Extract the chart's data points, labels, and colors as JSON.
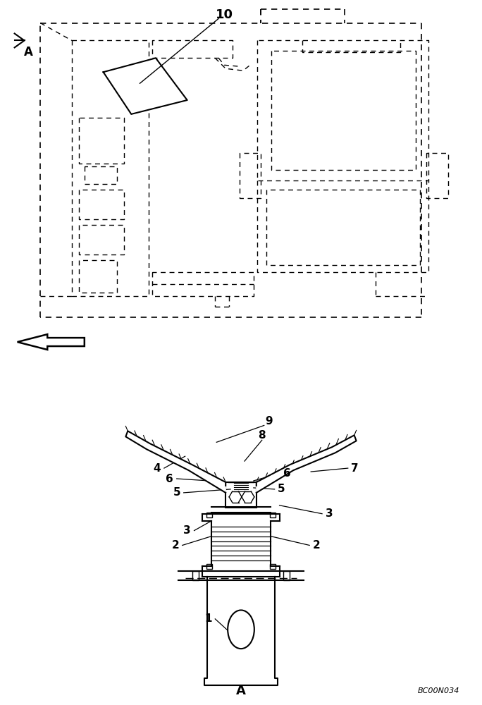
{
  "bg_color": "#ffffff",
  "line_color": "#000000",
  "fig_width": 6.84,
  "fig_height": 10.0,
  "dpi": 100,
  "bottom_ref": "BC00N034"
}
